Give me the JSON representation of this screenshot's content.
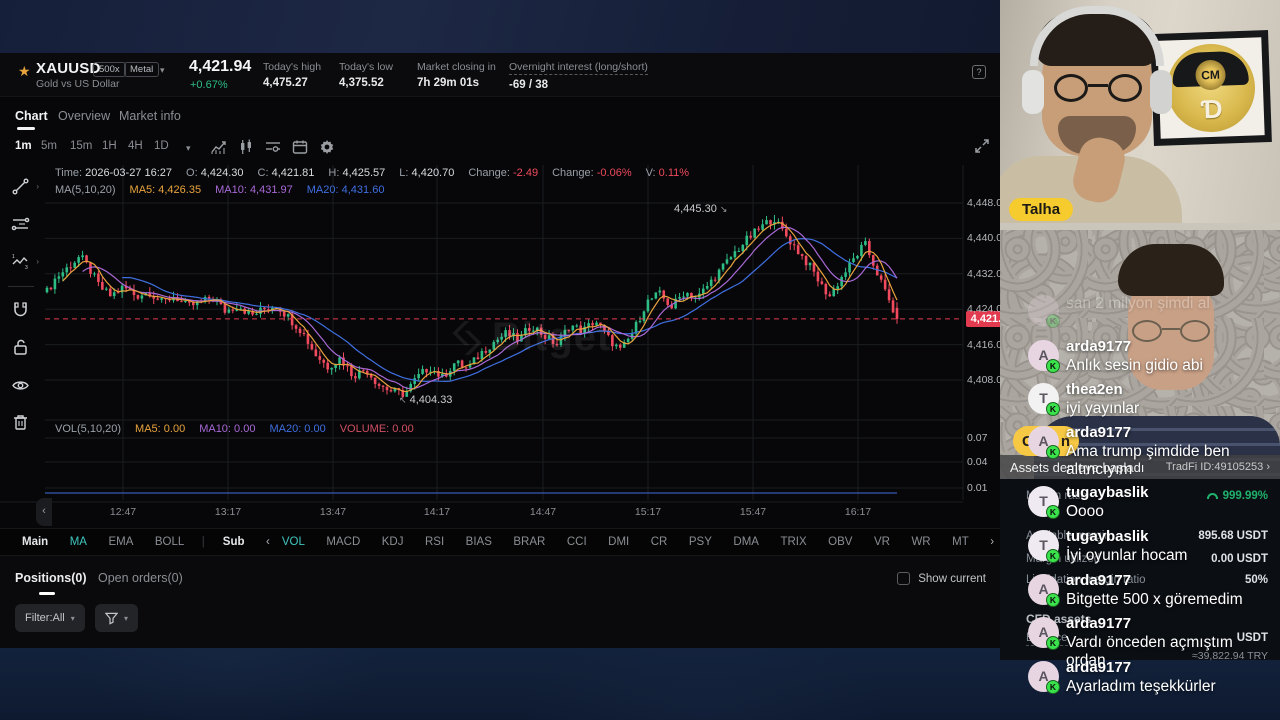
{
  "header": {
    "symbol": "XAUUSD",
    "leverage_badge": "500x",
    "category_badge": "Metal",
    "subtitle": "Gold vs US Dollar",
    "price": "4,421.94",
    "change_pct": "+0.67%",
    "stats": [
      {
        "label": "Today's high",
        "value": "4,475.27"
      },
      {
        "label": "Today's low",
        "value": "4,375.52"
      },
      {
        "label": "Market closing in",
        "value": "7h 29m 01s"
      },
      {
        "label": "Overnight interest (long/short)",
        "value": "-69 / 38",
        "dashed": true
      }
    ],
    "help_icon": "?"
  },
  "nav_tabs": [
    {
      "label": "Chart",
      "active": true
    },
    {
      "label": "Overview",
      "active": false
    },
    {
      "label": "Market info",
      "active": false
    }
  ],
  "timeframes": [
    {
      "label": "1m",
      "active": true
    },
    {
      "label": "5m",
      "active": false
    },
    {
      "label": "15m",
      "active": false
    },
    {
      "label": "1H",
      "active": false
    },
    {
      "label": "4H",
      "active": false
    },
    {
      "label": "1D",
      "active": false
    }
  ],
  "chart": {
    "ohlc_items": [
      {
        "label": "Time:",
        "value": "2026-03-27 16:27",
        "neg": false
      },
      {
        "label": "O:",
        "value": "4,424.30",
        "neg": false
      },
      {
        "label": "C:",
        "value": "4,421.81",
        "neg": false
      },
      {
        "label": "H:",
        "value": "4,425.57",
        "neg": false
      },
      {
        "label": "L:",
        "value": "4,420.70",
        "neg": false
      },
      {
        "label": "Change:",
        "value": "-2.49",
        "neg": true
      },
      {
        "label": "Change:",
        "value": "-0.06%",
        "neg": true
      },
      {
        "label": "V:",
        "value": "0.11%",
        "neg": true
      }
    ],
    "ma_items": [
      {
        "text": "MA(5,10,20)",
        "color": "#9aa0a8"
      },
      {
        "text": "MA5: 4,426.35",
        "color": "#E8A33D"
      },
      {
        "text": "MA10: 4,431.97",
        "color": "#A869D6"
      },
      {
        "text": "MA20: 4,431.60",
        "color": "#3F6FE0"
      }
    ],
    "vol_items": [
      {
        "text": "VOL(5,10,20)",
        "color": "#9aa0a8"
      },
      {
        "text": "MA5: 0.00",
        "color": "#E8A33D"
      },
      {
        "text": "MA10: 0.00",
        "color": "#A869D6"
      },
      {
        "text": "MA20: 0.00",
        "color": "#3F6FE0"
      },
      {
        "text": "VOLUME: 0.00",
        "color": "#d14f63"
      }
    ],
    "watermark": "Bitget",
    "price_tag": "4,421.8",
    "annotation_high": "4,445.30",
    "annotation_low": "4,404.33"
  },
  "chart_data": {
    "type": "candlestick",
    "title": "XAUUSD 1-minute chart",
    "interval": "1m",
    "x_labels": [
      "12:47",
      "13:17",
      "13:47",
      "14:17",
      "14:47",
      "15:17",
      "15:47",
      "16:17"
    ],
    "y_labels": [
      "4,448.0",
      "4,440.0",
      "4,432.0",
      "4,424.0",
      "4,416.0",
      "4,408.0"
    ],
    "y_gridlines": [
      4448,
      4440,
      4432,
      4424,
      4416,
      4408
    ],
    "volume_labels": [
      "0.07",
      "0.04",
      "0.01"
    ],
    "volume_value": 0.0,
    "current_price": 4421.8,
    "last_candle": {
      "o": 4424.3,
      "c": 4421.81,
      "h": 4425.57,
      "l": 4420.7
    },
    "high_annotation": {
      "label": "4,445.30",
      "value": 4445.3,
      "x_frac": 0.854
    },
    "low_annotation": {
      "label": "4,404.33",
      "value": 4404.33,
      "x_frac": 0.421
    },
    "ma_values": {
      "ma5": 4426.35,
      "ma10": 4431.97,
      "ma20": 4431.6
    },
    "colors": {
      "up": "#2EBD85",
      "down": "#F04A5F",
      "ma5": "#E8A33D",
      "ma10": "#A869D6",
      "ma20": "#3F6FE0",
      "current": "#E23B4F"
    },
    "candle_count": 216,
    "anchors": [
      [
        0.0,
        4428
      ],
      [
        0.01,
        4431
      ],
      [
        0.025,
        4433.5
      ],
      [
        0.039,
        4436
      ],
      [
        0.05,
        4433
      ],
      [
        0.062,
        4429
      ],
      [
        0.075,
        4427
      ],
      [
        0.09,
        4429
      ],
      [
        0.105,
        4427
      ],
      [
        0.12,
        4428
      ],
      [
        0.135,
        4425.5
      ],
      [
        0.15,
        4427
      ],
      [
        0.165,
        4424.5
      ],
      [
        0.18,
        4425.5
      ],
      [
        0.195,
        4426.5
      ],
      [
        0.21,
        4423.5
      ],
      [
        0.225,
        4425
      ],
      [
        0.24,
        4422.5
      ],
      [
        0.255,
        4424
      ],
      [
        0.27,
        4425
      ],
      [
        0.285,
        4422
      ],
      [
        0.3,
        4419
      ],
      [
        0.315,
        4414
      ],
      [
        0.33,
        4411
      ],
      [
        0.345,
        4413
      ],
      [
        0.36,
        4409
      ],
      [
        0.375,
        4410.5
      ],
      [
        0.39,
        4407
      ],
      [
        0.405,
        4405.5
      ],
      [
        0.421,
        4404.8
      ],
      [
        0.435,
        4408.5
      ],
      [
        0.45,
        4411
      ],
      [
        0.465,
        4408.5
      ],
      [
        0.48,
        4412
      ],
      [
        0.495,
        4410.5
      ],
      [
        0.51,
        4414
      ],
      [
        0.525,
        4416.5
      ],
      [
        0.54,
        4418.5
      ],
      [
        0.555,
        4417
      ],
      [
        0.57,
        4420.5
      ],
      [
        0.585,
        4418
      ],
      [
        0.6,
        4416
      ],
      [
        0.615,
        4420.5
      ],
      [
        0.63,
        4419
      ],
      [
        0.645,
        4421.5
      ],
      [
        0.66,
        4417.5
      ],
      [
        0.675,
        4414.5
      ],
      [
        0.69,
        4419
      ],
      [
        0.705,
        4425.5
      ],
      [
        0.72,
        4427.5
      ],
      [
        0.735,
        4424.5
      ],
      [
        0.75,
        4428
      ],
      [
        0.765,
        4426.5
      ],
      [
        0.78,
        4430
      ],
      [
        0.795,
        4433.5
      ],
      [
        0.81,
        4437
      ],
      [
        0.825,
        4440
      ],
      [
        0.84,
        4442.5
      ],
      [
        0.854,
        4444.6
      ],
      [
        0.868,
        4441
      ],
      [
        0.882,
        4437.5
      ],
      [
        0.9,
        4433
      ],
      [
        0.912,
        4429
      ],
      [
        0.921,
        4427
      ],
      [
        0.934,
        4431
      ],
      [
        0.948,
        4435
      ],
      [
        0.962,
        4438.8
      ],
      [
        0.975,
        4433
      ],
      [
        0.988,
        4427
      ],
      [
        1.0,
        4421.8
      ]
    ]
  },
  "indicator_bar": [
    {
      "label": "Main",
      "style": "white"
    },
    {
      "label": "MA",
      "style": "teal"
    },
    {
      "label": "EMA",
      "style": ""
    },
    {
      "label": "BOLL",
      "style": ""
    },
    {
      "label": "|",
      "style": "div"
    },
    {
      "label": "Sub",
      "style": "white"
    },
    {
      "label": "‹",
      "style": "chev"
    },
    {
      "label": "VOL",
      "style": "teal"
    },
    {
      "label": "MACD",
      "style": ""
    },
    {
      "label": "KDJ",
      "style": ""
    },
    {
      "label": "RSI",
      "style": ""
    },
    {
      "label": "BIAS",
      "style": ""
    },
    {
      "label": "BRAR",
      "style": ""
    },
    {
      "label": "CCI",
      "style": ""
    },
    {
      "label": "DMI",
      "style": ""
    },
    {
      "label": "CR",
      "style": ""
    },
    {
      "label": "PSY",
      "style": ""
    },
    {
      "label": "DMA",
      "style": ""
    },
    {
      "label": "TRIX",
      "style": ""
    },
    {
      "label": "OBV",
      "style": ""
    },
    {
      "label": "VR",
      "style": ""
    },
    {
      "label": "WR",
      "style": ""
    },
    {
      "label": "MT",
      "style": ""
    },
    {
      "label": "›",
      "style": "chev"
    }
  ],
  "positions": {
    "tab_positions": "Positions(0)",
    "tab_open_orders": "Open orders(0)",
    "show_current": "Show current",
    "filter_label": "Filter:All"
  },
  "stream": {
    "webcam1_label": "Talha",
    "coin_logo_text": "CM",
    "coin_logo_letter": "Ɗ",
    "banner": {
      "left": "Assets demeye başladı",
      "right": "TradFi ID:49105253 ›"
    },
    "gift_pill": {
      "left": "Gö",
      "right": "n"
    },
    "chat": [
      {
        "user": "",
        "text": "san 2 milyon şimdi al",
        "avatar": "",
        "avatar_color": "#e7d6e2",
        "faded": true
      },
      {
        "user": "arda9177",
        "text": "Anlık sesin gidio abi",
        "avatar": "A",
        "avatar_color": "#e7d6e2",
        "faded": false
      },
      {
        "user": "thea2en",
        "text": "iyi yayınlar",
        "avatar": "T",
        "avatar_color": "#f2f2f2",
        "faded": false
      },
      {
        "user": "arda9177",
        "text": "Ama trump şimdide ben altıncıyım",
        "avatar": "A",
        "avatar_color": "#e7d6e2",
        "faded": false
      },
      {
        "user": "tugaybaslik",
        "text": "Oooo",
        "avatar": "T",
        "avatar_color": "#efe9f2",
        "faded": false
      },
      {
        "user": "tugaybaslik",
        "text": "İyi oyunlar hocam",
        "avatar": "T",
        "avatar_color": "#efe9f2",
        "faded": false
      },
      {
        "user": "arda9177",
        "text": "Bitgette 500 x göremedim",
        "avatar": "A",
        "avatar_color": "#e7d6e2",
        "faded": false
      },
      {
        "user": "arda9177",
        "text": "Vardı önceden açmıştım ordan",
        "avatar": "A",
        "avatar_color": "#e7d6e2",
        "faded": false
      },
      {
        "user": "arda9177",
        "text": "Ayarladım teşekkürler",
        "avatar": "A",
        "avatar_color": "#e7d6e2",
        "faded": false
      }
    ],
    "k_badge": "K",
    "app_panel": {
      "rows": [
        {
          "label": "Margin ratio",
          "value": "999.99%",
          "value_color": "#20b26c",
          "gauge": true
        },
        {
          "label": "Available margin",
          "value": "895.68 USDT",
          "value_color": "",
          "gauge": false
        },
        {
          "label": "Margin utilized",
          "value": "0.00 USDT",
          "value_color": "",
          "gauge": false
        },
        {
          "label": "Liquidation margin ratio",
          "value": "50%",
          "value_color": "",
          "gauge": false
        }
      ],
      "section": "CFD assets",
      "balance_label": "Balance",
      "balance_value": "USDT",
      "balance_try": "≈39,822.94 TRY"
    }
  }
}
